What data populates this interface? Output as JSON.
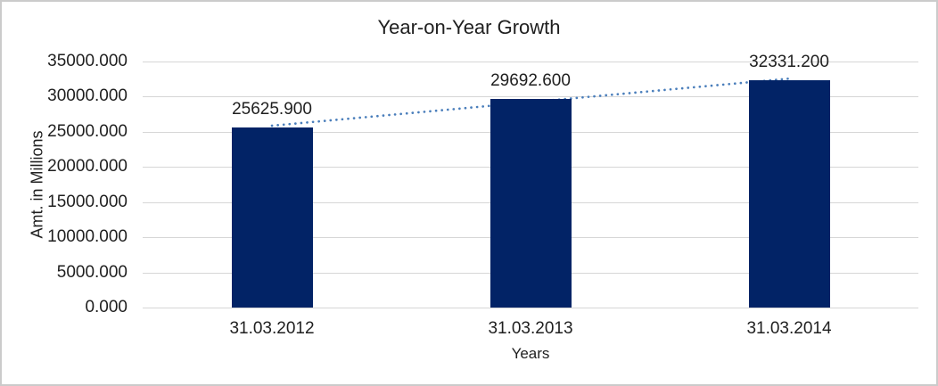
{
  "chart": {
    "colors": {
      "bar": "#022366",
      "trendline": "#4a7ebb",
      "gridline": "#d6d6d6",
      "text": "#1f1f1f",
      "frame_border": "#cbcbcb",
      "background": "#ffffff"
    }
  },
  "chart_data": {
    "type": "bar",
    "title": "Year-on-Year Growth",
    "categories": [
      "31.03.2012",
      "31.03.2013",
      "31.03.2014"
    ],
    "values": [
      25625.9,
      29692.6,
      32331.2
    ],
    "data_labels": [
      "25625.900",
      "29692.600",
      "32331.200"
    ],
    "xlabel": "Years",
    "ylabel": "Amt. in Millions",
    "ylim": [
      0,
      35000
    ],
    "y_tick_step": 5000,
    "y_tick_labels": [
      "0.000",
      "5000.000",
      "10000.000",
      "15000.000",
      "20000.000",
      "25000.000",
      "30000.000",
      "35000.000"
    ],
    "grid": true,
    "legend": false,
    "trendline": {
      "type": "linear",
      "style": "dotted"
    }
  }
}
